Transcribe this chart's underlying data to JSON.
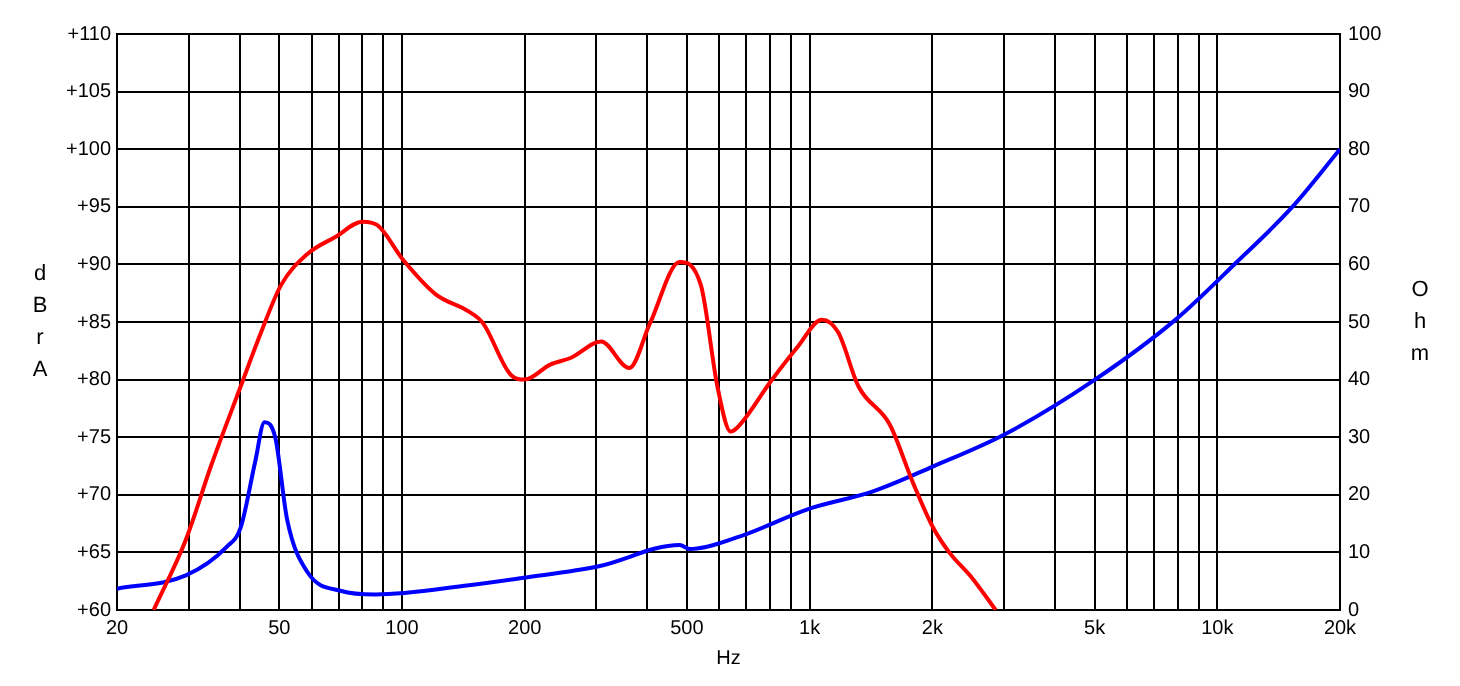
{
  "chart_data": {
    "type": "line",
    "xlabel": "Hz",
    "ylabel": "dBrA",
    "y2label": "Ohm",
    "log": "x",
    "grid": true,
    "legend": false,
    "marker": "none",
    "line_style": "solid",
    "xlim": [
      20,
      20000
    ],
    "xticks": [
      20,
      {
        "value": 30,
        "label": null
      },
      {
        "value": 40,
        "label": null
      },
      50,
      {
        "value": 60,
        "label": null
      },
      {
        "value": 70,
        "label": null
      },
      {
        "value": 80,
        "label": null
      },
      {
        "value": 90,
        "label": null
      },
      100,
      200,
      {
        "value": 300,
        "label": null
      },
      {
        "value": 400,
        "label": null
      },
      500,
      {
        "value": 600,
        "label": null
      },
      {
        "value": 700,
        "label": null
      },
      {
        "value": 800,
        "label": null
      },
      {
        "value": 900,
        "label": null
      },
      {
        "value": 1000,
        "label": "1k"
      },
      {
        "value": 2000,
        "label": "2k"
      },
      {
        "value": 3000,
        "label": null
      },
      {
        "value": 4000,
        "label": null
      },
      {
        "value": 5000,
        "label": "5k"
      },
      {
        "value": 6000,
        "label": null
      },
      {
        "value": 7000,
        "label": null
      },
      {
        "value": 8000,
        "label": null
      },
      {
        "value": 9000,
        "label": null
      },
      {
        "value": 10000,
        "label": "10k"
      },
      {
        "value": 20000,
        "label": "20k"
      }
    ],
    "ylim": [
      60,
      110
    ],
    "yticks": [
      {
        "value": 60,
        "label": "+60"
      },
      {
        "value": 65,
        "label": "+65"
      },
      {
        "value": 70,
        "label": "+70"
      },
      {
        "value": 75,
        "label": "+75"
      },
      {
        "value": 80,
        "label": "+80"
      },
      {
        "value": 85,
        "label": "+85"
      },
      {
        "value": 90,
        "label": "+90"
      },
      {
        "value": 95,
        "label": "+95"
      },
      {
        "value": 100,
        "label": "+100"
      },
      {
        "value": 105,
        "label": "+105"
      },
      {
        "value": 110,
        "label": "+110"
      }
    ],
    "y2lim": [
      0,
      100
    ],
    "y2ticks": [
      0,
      10,
      20,
      30,
      40,
      50,
      60,
      70,
      80,
      90,
      100
    ],
    "series": [
      {
        "color": "#ff0000",
        "x": [
          24.6,
          29.5,
          34,
          40.2,
          45,
          50.5,
          58.6,
          68.8,
          80,
          87,
          100.6,
          121,
          146,
          158,
          185,
          200,
          231,
          260,
          308,
          361,
          406,
          480,
          541,
          594,
          640,
          663,
          805,
          933,
          1072,
          1175,
          1318,
          1572,
          1790,
          2005,
          2200,
          2500,
          2860
        ],
        "values": [
          60,
          66.1,
          72.5,
          79.4,
          84,
          88.2,
          90.9,
          92.4,
          93.7,
          93.4,
          90.4,
          87.4,
          85.9,
          84.9,
          80.4,
          80,
          81.3,
          81.9,
          83.3,
          81,
          84.9,
          90.2,
          88.2,
          79.4,
          75.5,
          75.8,
          79.9,
          82.8,
          85.2,
          84.1,
          79.4,
          76.1,
          71.1,
          67.2,
          65,
          62.8,
          60
        ]
      },
      {
        "color": "#0000ff",
        "axis": "y2",
        "x": [
          20,
          29.5,
          37.2,
          40.2,
          43.6,
          46,
          48.9,
          52.3,
          58.6,
          71,
          86,
          146,
          199,
          304,
          480,
          508,
          663,
          1000,
          1430,
          2005,
          3030,
          4990,
          7930,
          11200,
          15200,
          20000
        ],
        "values": [
          3.7,
          6,
          11,
          14.3,
          25.6,
          32.6,
          29.9,
          15.6,
          6.6,
          3.3,
          2.7,
          4.3,
          5.6,
          7.6,
          11.3,
          10.6,
          12.6,
          17.6,
          20.6,
          24.9,
          30.6,
          39.9,
          50.5,
          60.5,
          69.8,
          80
        ]
      }
    ]
  }
}
